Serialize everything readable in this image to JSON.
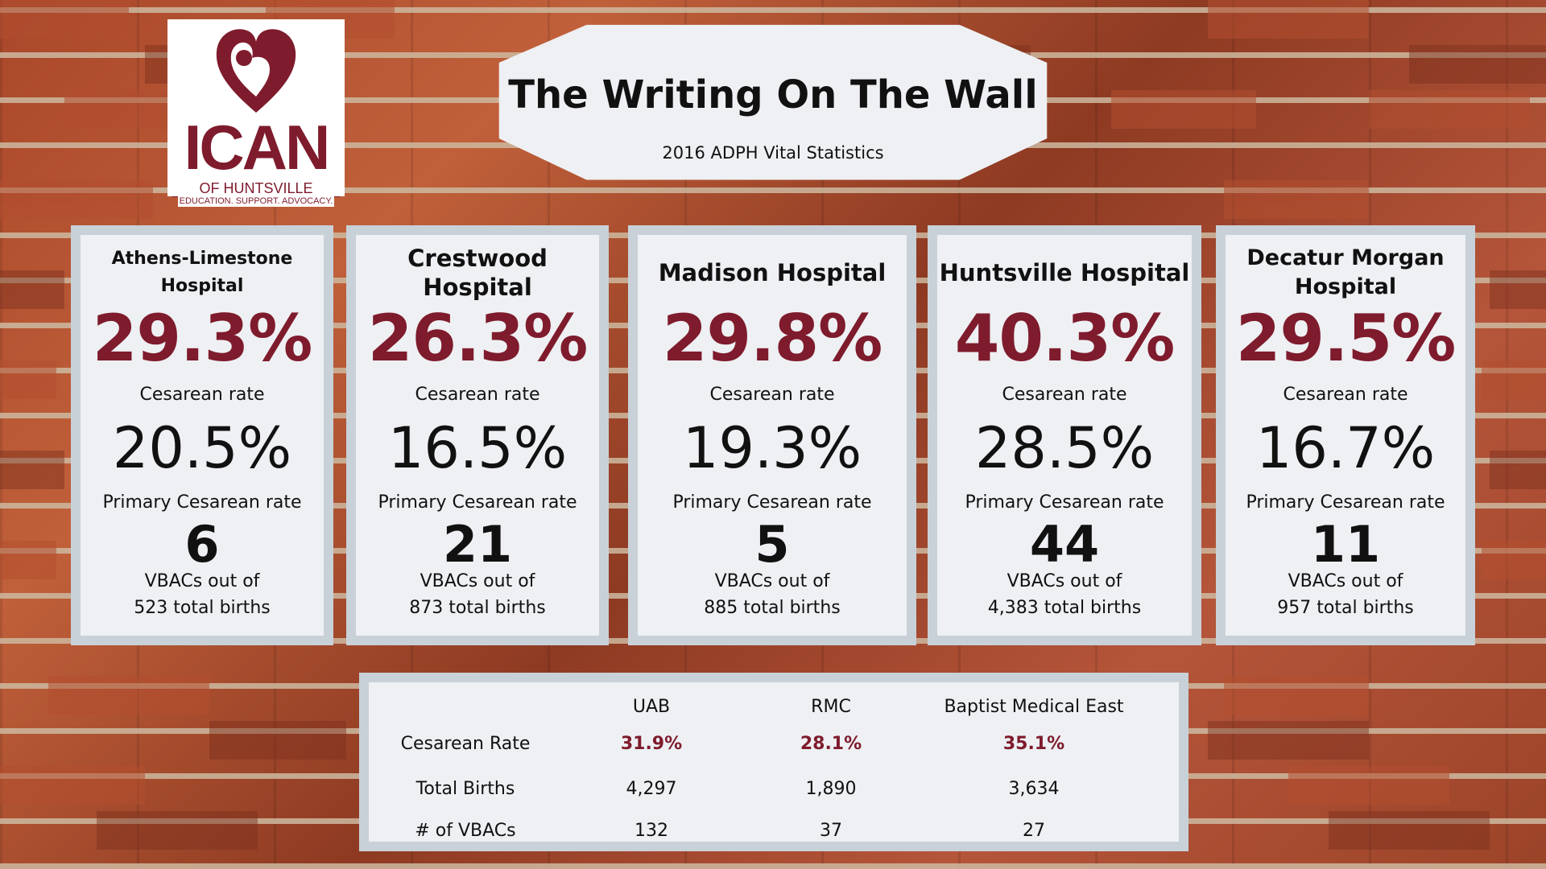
{
  "logo": {
    "word": "ICAN",
    "sub": "OF HUNTSVILLE",
    "tagline": "EDUCATION. SUPPORT. ADVOCACY."
  },
  "banner": {
    "title": "The Writing On The Wall",
    "subtitle": "2016 ADPH Vital Statistics"
  },
  "colors": {
    "accent": "#7e1b2c",
    "card_frame": "#c9d1d8",
    "card_fill": "#eef0f3"
  },
  "hospitals": [
    {
      "name": "Athens-Limestone Hospital",
      "cesarean_rate": "29.3%",
      "cesarean_label": "Cesarean rate",
      "primary_rate": "20.5%",
      "primary_label": "Primary Cesarean rate",
      "vbacs": "6",
      "vbac_line1": "VBACs out of",
      "vbac_line2": "523 total births"
    },
    {
      "name": "Crestwood Hospital",
      "cesarean_rate": "26.3%",
      "cesarean_label": "Cesarean rate",
      "primary_rate": "16.5%",
      "primary_label": "Primary Cesarean rate",
      "vbacs": "21",
      "vbac_line1": "VBACs out of",
      "vbac_line2": "873 total births"
    },
    {
      "name": "Madison Hospital",
      "cesarean_rate": "29.8%",
      "cesarean_label": "Cesarean rate",
      "primary_rate": "19.3%",
      "primary_label": "Primary Cesarean rate",
      "vbacs": "5",
      "vbac_line1": "VBACs out of",
      "vbac_line2": "885 total births"
    },
    {
      "name": "Huntsville Hospital",
      "cesarean_rate": "40.3%",
      "cesarean_label": "Cesarean rate",
      "primary_rate": "28.5%",
      "primary_label": "Primary Cesarean rate",
      "vbacs": "44",
      "vbac_line1": "VBACs out of",
      "vbac_line2": "4,383 total births"
    },
    {
      "name": "Decatur Morgan Hospital",
      "cesarean_rate": "29.5%",
      "cesarean_label": "Cesarean rate",
      "primary_rate": "16.7%",
      "primary_label": "Primary Cesarean rate",
      "vbacs": "11",
      "vbac_line1": "VBACs out of",
      "vbac_line2": "957 total births"
    }
  ],
  "table": {
    "columns": [
      "UAB",
      "RMC",
      "Baptist Medical East"
    ],
    "rows": [
      {
        "label": "Cesarean Rate",
        "values": [
          "31.9%",
          "28.1%",
          "35.1%"
        ]
      },
      {
        "label": "Total Births",
        "values": [
          "4,297",
          "1,890",
          "3,634"
        ]
      },
      {
        "label": "# of VBACs",
        "values": [
          "132",
          "37",
          "27"
        ]
      }
    ]
  }
}
